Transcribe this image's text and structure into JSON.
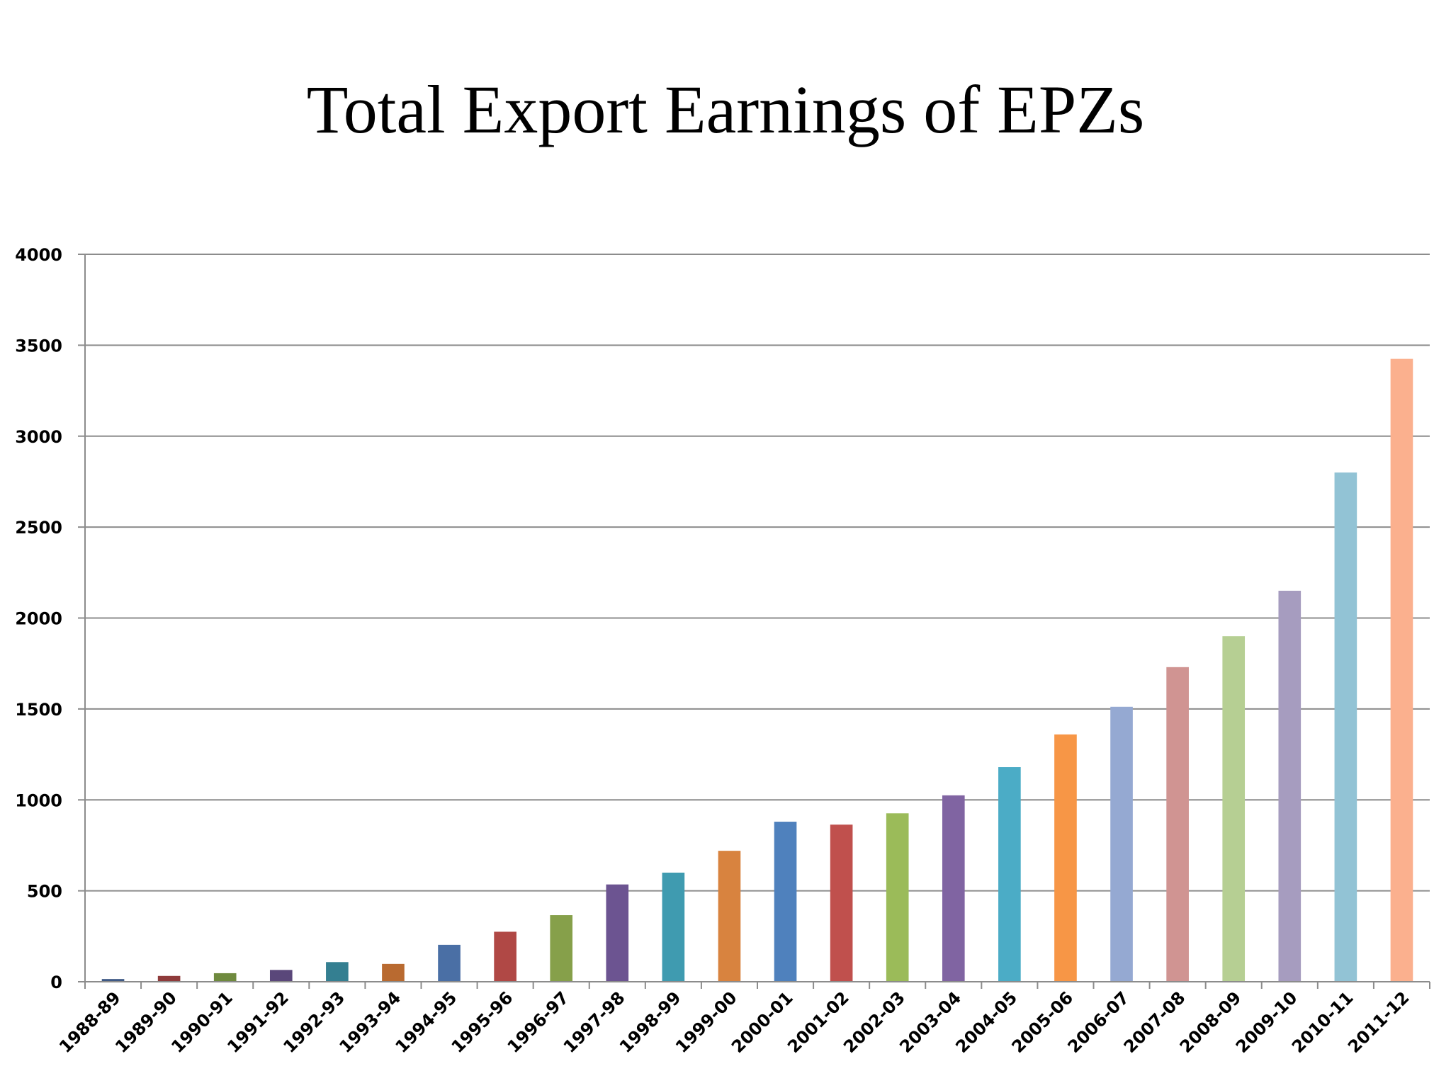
{
  "chart_data": {
    "type": "bar",
    "title": "Total Export Earnings of EPZs",
    "xlabel": "",
    "ylabel": "",
    "ylim": [
      0,
      4000
    ],
    "yticks": [
      0,
      500,
      1000,
      1500,
      2000,
      2500,
      3000,
      3500,
      4000
    ],
    "ytick_labels": [
      "0",
      "500",
      "1000",
      "1500",
      "2000",
      "2500",
      "3000",
      "3500",
      "4000"
    ],
    "grid": true,
    "legend": "none",
    "categories": [
      "1988-89",
      "1989-90",
      "1990-91",
      "1991-92",
      "1992-93",
      "1993-94",
      "1994-95",
      "1995-96",
      "1996-97",
      "1997-98",
      "1998-99",
      "1999-00",
      "2000-01",
      "2001-02",
      "2002-03",
      "2003-04",
      "2004-05",
      "2005-06",
      "2006-07",
      "2007-08",
      "2008-09",
      "2009-10",
      "2010-11",
      "2011-12"
    ],
    "values": [
      15,
      32,
      47,
      65,
      108,
      98,
      203,
      275,
      366,
      535,
      600,
      720,
      880,
      864,
      926,
      1025,
      1180,
      1360,
      1512,
      1730,
      1900,
      2150,
      2800,
      3425
    ],
    "colors": [
      "#3f5a86",
      "#8f3b3b",
      "#6f8a3e",
      "#5a477a",
      "#347f91",
      "#b96a30",
      "#4a6fa5",
      "#b04845",
      "#86a04a",
      "#6c5491",
      "#3f9bb0",
      "#d8833f",
      "#4f81bd",
      "#c0504d",
      "#9bbb59",
      "#8064a2",
      "#4bacc6",
      "#f79646",
      "#95a9d2",
      "#d09492",
      "#b6cf93",
      "#a69cbf",
      "#92c3d5",
      "#fbb08e"
    ]
  }
}
